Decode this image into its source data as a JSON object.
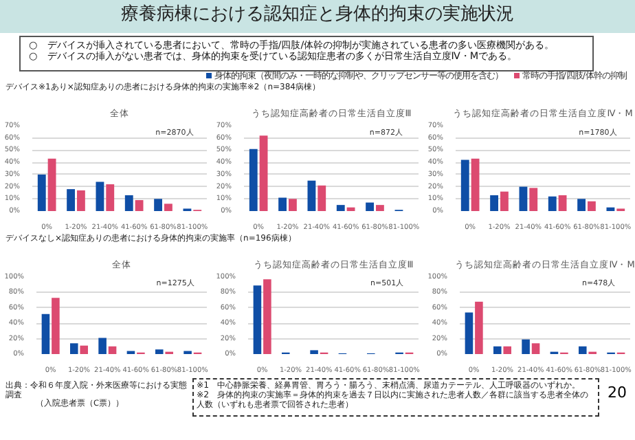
{
  "chart_data": [
    {
      "type": "other",
      "title": "療養病棟における認知症と身体的拘束の実施状況",
      "annotations": [
        "○　デバイスが挿入されている患者において、常時の手指/四肢/体幹の抑制が実施されている患者の多い医療機関がある。",
        "○　デバイスの挿入がない患者では、身体的拘束を受けている認知症患者の多くが日常生活自立度Ⅳ・Mである。",
        "出典：令和６年度入院・外来医療等における実態調査",
        "（入院患者票（C票））",
        "※1　中心静脈栄養、経鼻胃管、胃ろう・腸ろう、末梢点滴、尿道カテーテル、人工呼吸器のいずれか。",
        "※2　身体的拘束の実施率＝身体的拘束を過去７日以内に実施された患者人数／各群に該当する患者全体の人数（いずれも患者票で回答された患者）",
        "20"
      ]
    },
    {
      "type": "bar",
      "title": "全体",
      "subtitle": "デバイス※1あり×認知症ありの患者における身体的拘束の実施率※2（n=384病棟）",
      "legend": "top right",
      "grid": "y",
      "annotations": [
        "n=2870人"
      ],
      "categories": [
        "0%",
        "1-20%",
        "21-40%",
        "41-60%",
        "61-80%",
        "81-100%"
      ],
      "ylim": [
        0,
        70
      ],
      "yticks": [
        {
          "value": 0,
          "label": "0%"
        },
        {
          "value": 10,
          "label": "10%"
        },
        {
          "value": 20,
          "label": "20%"
        },
        {
          "value": 30,
          "label": "30%"
        },
        {
          "value": 40,
          "label": "40%"
        },
        {
          "value": 50,
          "label": "50%"
        },
        {
          "value": 60,
          "label": "60%"
        },
        {
          "value": 70,
          "label": "70%"
        }
      ],
      "series": [
        {
          "name": "身体的拘束（夜間のみ・一時的な抑制や、クリップセンサー等の使用を含む）",
          "color": "#0f4ea6",
          "values": [
            30,
            18,
            24,
            13,
            10,
            2
          ]
        },
        {
          "name": "常時の手指/四肢/体幹の抑制",
          "color": "#dc4a70",
          "values": [
            43,
            17,
            22,
            9,
            6,
            1
          ]
        }
      ]
    },
    {
      "type": "bar",
      "title": "うち認知症高齢者の日常生活自立度Ⅲ",
      "grid": "y",
      "annotations": [
        "n=872人"
      ],
      "categories": [
        "0%",
        "1-20%",
        "21-40%",
        "41-60%",
        "61-80%",
        "81-100%"
      ],
      "ylim": [
        0,
        70
      ],
      "yticks": [
        {
          "value": 0,
          "label": "0%"
        },
        {
          "value": 10,
          "label": "10%"
        },
        {
          "value": 20,
          "label": "20%"
        },
        {
          "value": 30,
          "label": "30%"
        },
        {
          "value": 40,
          "label": "40%"
        },
        {
          "value": 50,
          "label": "50%"
        },
        {
          "value": 60,
          "label": "60%"
        },
        {
          "value": 70,
          "label": "70%"
        }
      ],
      "series": [
        {
          "color": "#0f4ea6",
          "values": [
            51,
            11,
            25,
            5,
            7,
            1
          ]
        },
        {
          "color": "#dc4a70",
          "values": [
            62,
            10,
            21,
            3,
            5,
            0
          ]
        }
      ]
    },
    {
      "type": "bar",
      "title": "うち認知症高齢者の日常生活自立度Ⅳ・M",
      "grid": "y",
      "annotations": [
        "n=1780人"
      ],
      "categories": [
        "0%",
        "1-20%",
        "21-40%",
        "41-60%",
        "61-80%",
        "81-100%"
      ],
      "ylim": [
        0,
        70
      ],
      "yticks": [
        {
          "value": 0,
          "label": "0%"
        },
        {
          "value": 10,
          "label": "10%"
        },
        {
          "value": 20,
          "label": "20%"
        },
        {
          "value": 30,
          "label": "30%"
        },
        {
          "value": 40,
          "label": "40%"
        },
        {
          "value": 50,
          "label": "50%"
        },
        {
          "value": 60,
          "label": "60%"
        },
        {
          "value": 70,
          "label": "70%"
        }
      ],
      "series": [
        {
          "color": "#0f4ea6",
          "values": [
            42,
            13,
            20,
            12,
            10,
            3
          ]
        },
        {
          "color": "#dc4a70",
          "values": [
            43,
            16,
            19,
            13,
            8,
            2
          ]
        }
      ]
    },
    {
      "type": "bar",
      "title": "全体",
      "subtitle": "デバイスなし×認知症ありの患者における身体的拘束の実施率（n=196病棟）",
      "grid": "y",
      "annotations": [
        "n=1275人"
      ],
      "categories": [
        "0%",
        "1-20%",
        "21-40%",
        "41-60%",
        "61-80%",
        "81-100%"
      ],
      "ylim": [
        0,
        100
      ],
      "yticks": [
        {
          "value": 0,
          "label": "0%"
        },
        {
          "value": 20,
          "label": "20%"
        },
        {
          "value": 40,
          "label": "40%"
        },
        {
          "value": 60,
          "label": "60%"
        },
        {
          "value": 80,
          "label": "80%"
        },
        {
          "value": 100,
          "label": "100%"
        }
      ],
      "series": [
        {
          "color": "#0f4ea6",
          "values": [
            52,
            14,
            21,
            4,
            6,
            4
          ]
        },
        {
          "color": "#dc4a70",
          "values": [
            73,
            11,
            10,
            2,
            3,
            2
          ]
        }
      ]
    },
    {
      "type": "bar",
      "title": "うち認知症高齢者の日常生活自立度Ⅲ",
      "grid": "y",
      "annotations": [
        "n=501人"
      ],
      "categories": [
        "0%",
        "1-20%",
        "21-40%",
        "41-60%",
        "61-80%",
        "81-100%"
      ],
      "ylim": [
        0,
        100
      ],
      "yticks": [
        {
          "value": 0,
          "label": "0%"
        },
        {
          "value": 20,
          "label": "20%"
        },
        {
          "value": 40,
          "label": "40%"
        },
        {
          "value": 60,
          "label": "60%"
        },
        {
          "value": 80,
          "label": "80%"
        },
        {
          "value": 100,
          "label": "100%"
        }
      ],
      "series": [
        {
          "color": "#0f4ea6",
          "values": [
            89,
            2,
            5,
            1,
            1,
            2
          ]
        },
        {
          "color": "#dc4a70",
          "values": [
            97,
            0,
            2,
            0,
            0,
            2
          ]
        }
      ]
    },
    {
      "type": "bar",
      "title": "うち認知症高齢者の日常生活自立度Ⅳ・M",
      "grid": "y",
      "annotations": [
        "n=478人"
      ],
      "categories": [
        "0%",
        "1-20%",
        "21-40%",
        "41-60%",
        "61-80%",
        "81-100%"
      ],
      "ylim": [
        0,
        100
      ],
      "yticks": [
        {
          "value": 0,
          "label": "0%"
        },
        {
          "value": 20,
          "label": "20%"
        },
        {
          "value": 40,
          "label": "40%"
        },
        {
          "value": 60,
          "label": "60%"
        },
        {
          "value": 80,
          "label": "80%"
        },
        {
          "value": 100,
          "label": "100%"
        }
      ],
      "series": [
        {
          "color": "#0f4ea6",
          "values": [
            54,
            10,
            19,
            3,
            10,
            2
          ]
        },
        {
          "color": "#dc4a70",
          "values": [
            68,
            10,
            14,
            2,
            3,
            2
          ]
        }
      ]
    }
  ]
}
